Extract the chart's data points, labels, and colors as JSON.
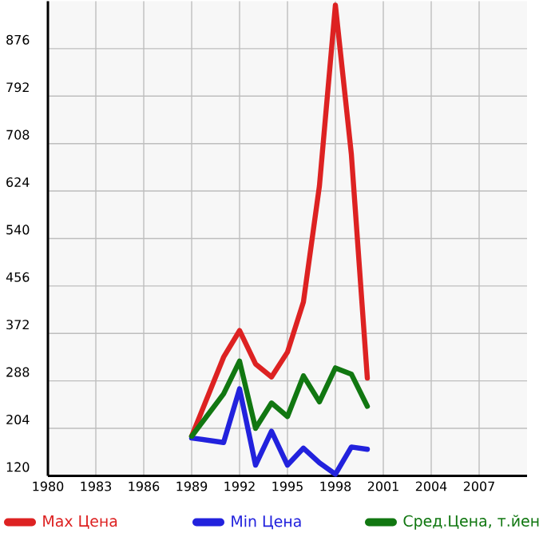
{
  "chart_data": {
    "type": "line",
    "x": [
      1989,
      1991,
      1992,
      1993,
      1994,
      1995,
      1996,
      1997,
      1998,
      1999,
      2000
    ],
    "series": [
      {
        "name": "Max Цена",
        "color": "#dd2222",
        "values": [
          190,
          330,
          377,
          318,
          295,
          339,
          428,
          633,
          953,
          689,
          293
        ]
      },
      {
        "name": "Min Цена",
        "color": "#2222dd",
        "values": [
          187,
          179,
          274,
          139,
          199,
          139,
          169,
          143,
          123,
          171,
          167
        ]
      },
      {
        "name": "Сред.Цена, т.йен",
        "color": "#117711",
        "values": [
          190,
          265,
          323,
          204,
          249,
          225,
          297,
          251,
          311,
          300,
          243
        ]
      }
    ],
    "xlim": [
      1980,
      2010
    ],
    "xticks": [
      1980,
      1983,
      1986,
      1989,
      1992,
      1995,
      1998,
      2001,
      2004,
      2007
    ],
    "ylim": [
      120,
      960
    ],
    "yticks": [
      120,
      204,
      288,
      372,
      456,
      540,
      624,
      708,
      792,
      876
    ],
    "grid": true,
    "legend": "bottom",
    "marker": "none",
    "line_style": "solid"
  }
}
